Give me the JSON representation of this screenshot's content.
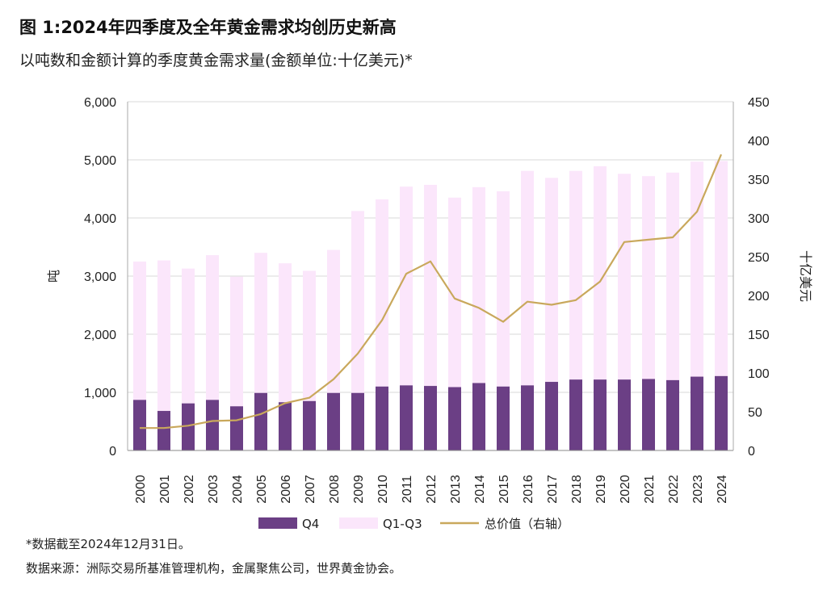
{
  "title": "图 1:2024年四季度及全年黄金需求均创历史新高",
  "subtitle": "以吨数和金额计算的季度黄金需求量(金额单位:十亿美元)*",
  "footnote": "*数据截至2024年12月31日。",
  "source": "数据来源：洲际交易所基准管理机构，金属聚焦公司，世界黄金协会。",
  "colors": {
    "q4": "#6b3f85",
    "q1q3": "#fbe6fb",
    "value_line": "#c9a85c",
    "grid": "#d9d9d9"
  },
  "chart_data": {
    "type": "bar",
    "stacked": true,
    "categories": [
      "2000",
      "2001",
      "2002",
      "2003",
      "2004",
      "2005",
      "2006",
      "2007",
      "2008",
      "2009",
      "2010",
      "2011",
      "2012",
      "2013",
      "2014",
      "2015",
      "2016",
      "2017",
      "2018",
      "2019",
      "2020",
      "2021",
      "2022",
      "2023",
      "2024"
    ],
    "series": [
      {
        "name": "Q4",
        "axis": "left",
        "kind": "bar",
        "values": [
          870,
          680,
          810,
          870,
          760,
          990,
          830,
          850,
          990,
          990,
          1100,
          1120,
          1110,
          1090,
          1160,
          1100,
          1120,
          1180,
          1220,
          1220,
          1220,
          1230,
          1210,
          1270,
          1280
        ]
      },
      {
        "name": "Q1-Q3",
        "axis": "left",
        "kind": "bar",
        "values": [
          2380,
          2590,
          2320,
          2490,
          2230,
          2410,
          2390,
          2240,
          2460,
          3130,
          3220,
          3420,
          3460,
          3260,
          3370,
          3360,
          3690,
          3510,
          3590,
          3670,
          3540,
          3490,
          3570,
          3700,
          3700
        ]
      },
      {
        "name": "总价值（右轴）",
        "axis": "right",
        "kind": "line",
        "values": [
          29,
          29,
          32,
          38,
          39,
          47,
          61,
          68,
          92,
          125,
          168,
          228,
          244,
          196,
          184,
          166,
          192,
          188,
          194,
          218,
          269,
          272,
          275,
          308,
          382
        ]
      }
    ],
    "ylabel": "吨",
    "y2label": "十亿美元",
    "ylim": [
      0,
      6000
    ],
    "y2lim": [
      0,
      450
    ],
    "yticks": [
      "0",
      "1,000",
      "2,000",
      "3,000",
      "4,000",
      "5,000",
      "6,000"
    ],
    "y2ticks": [
      "0",
      "50",
      "100",
      "150",
      "200",
      "250",
      "300",
      "350",
      "400",
      "450"
    ],
    "grid": true,
    "legend_position": "bottom"
  }
}
